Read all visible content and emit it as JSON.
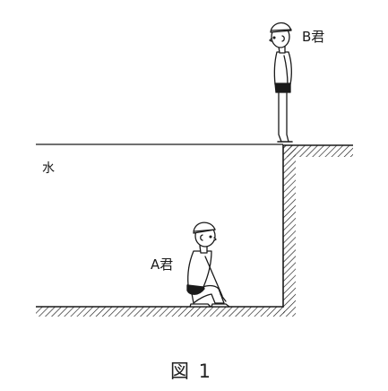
{
  "labels": {
    "person_b": "B君",
    "person_a": "A君",
    "water": "水"
  },
  "caption": "図 1",
  "colors": {
    "ink": "#1a1a1a",
    "paper": "#ffffff"
  }
}
